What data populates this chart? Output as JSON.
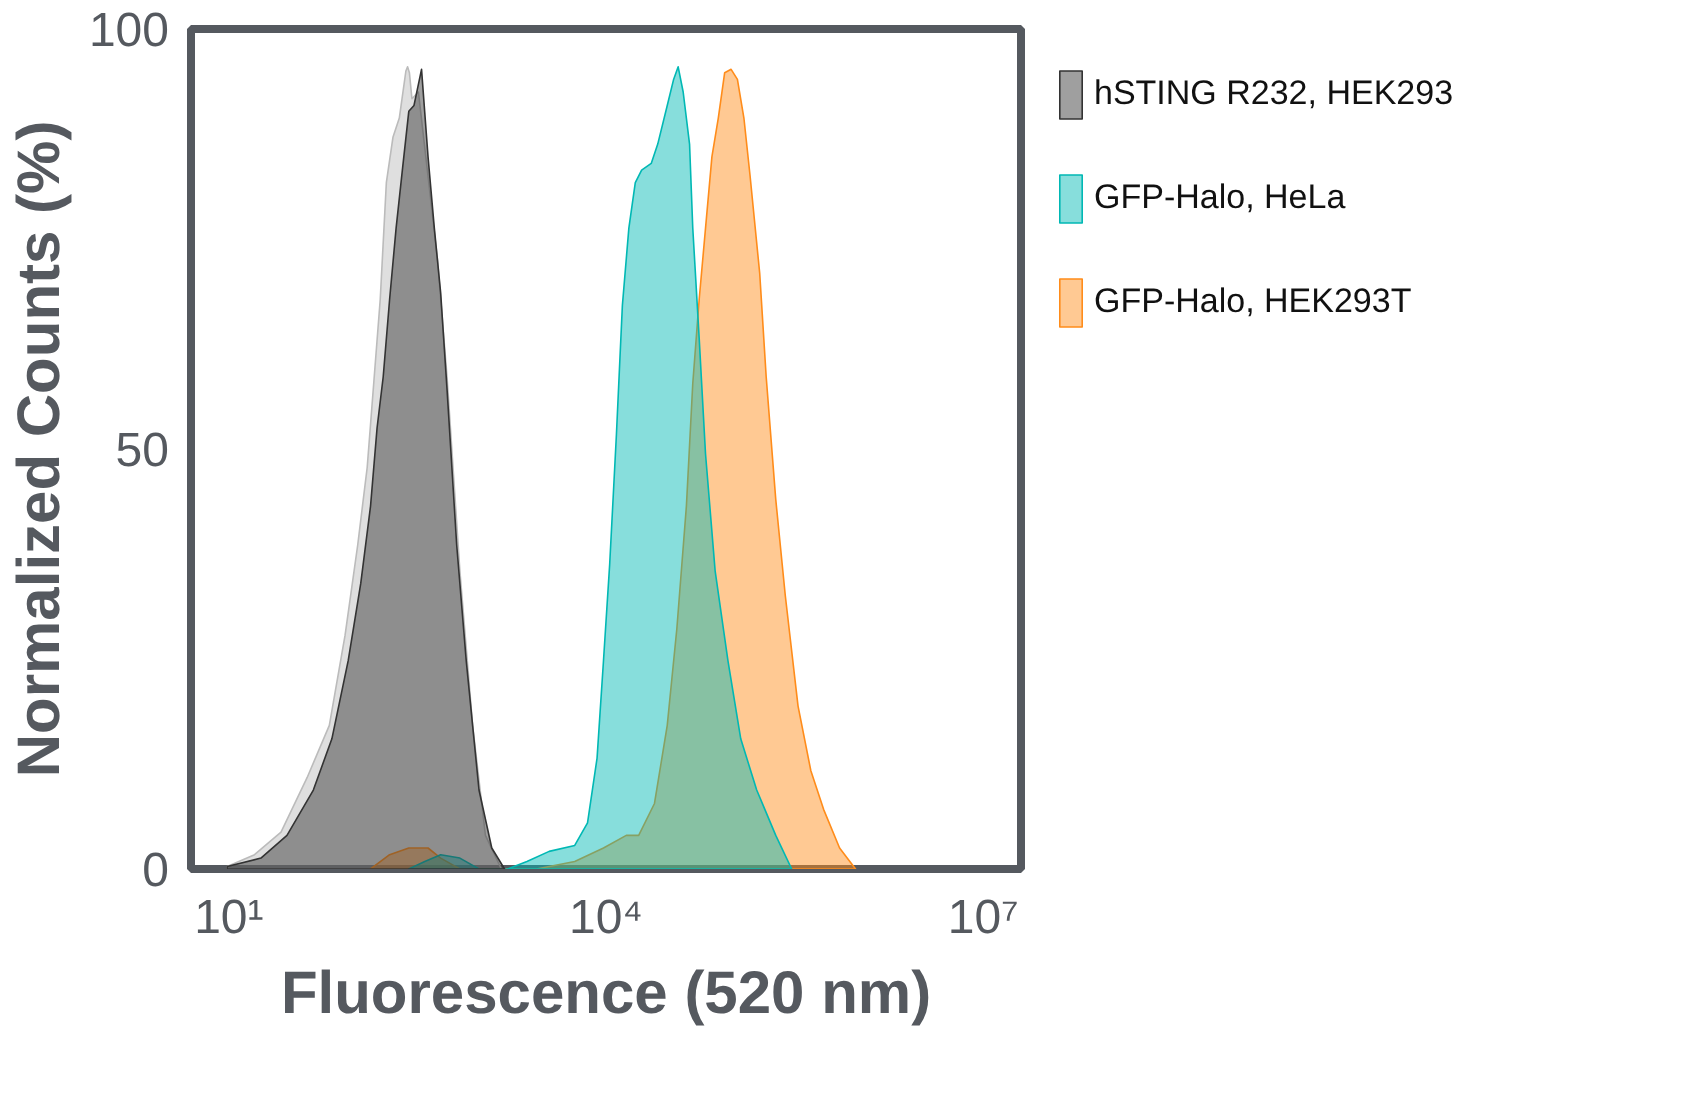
{
  "chart_data": {
    "type": "area",
    "xlabel": "Fluorescence (520 nm)",
    "ylabel": "Normalized Counts (%)",
    "log": "x",
    "xlim": [
      5,
      20000000
    ],
    "xticks": [
      {
        "value": 10,
        "label": "10¹"
      },
      {
        "value": 10000,
        "label": "10⁴"
      },
      {
        "value": 10000000,
        "label": "10⁷"
      }
    ],
    "ylim": [
      0,
      100
    ],
    "yticks": [
      0,
      50,
      100
    ],
    "grid": false,
    "legend": "right",
    "series": [
      {
        "name": "hSTING R232, HEK293",
        "color": "#333333",
        "x": [
          9.7,
          18,
          29,
          47,
          66,
          89,
          112,
          134,
          151,
          169,
          190,
          214,
          240,
          270,
          297,
          341,
          384,
          431,
          484,
          544,
          649,
          773,
          977,
          1234,
          1560
        ],
        "values": [
          0.3,
          1.3,
          4.0,
          9.4,
          15.5,
          24.8,
          34.0,
          43.2,
          52.5,
          58.6,
          67.8,
          76.3,
          83.2,
          90.2,
          90.9,
          95.2,
          84.8,
          76.3,
          68.6,
          57.1,
          38.6,
          24.8,
          9.4,
          2.5,
          0
        ]
      },
      {
        "name": "GFP-Halo, HeLa",
        "color": "#00b8b4",
        "x": [
          270,
          362,
          484,
          688,
          977,
          1652,
          2350,
          3530,
          5640,
          7130,
          8490,
          9550,
          10700,
          12100,
          13500,
          15200,
          17100,
          19200,
          22900,
          25800,
          30700,
          34500,
          37500,
          41100,
          46200,
          49000,
          55100,
          61900,
          73800,
          93300,
          118000,
          158000,
          224000,
          300000
        ],
        "values": [
          0,
          0.9,
          1.7,
          1.3,
          0,
          0,
          0.9,
          2.1,
          2.8,
          5.5,
          13.2,
          24.8,
          36.3,
          51.7,
          67.1,
          76.3,
          81.7,
          83.2,
          84.0,
          86.3,
          90.9,
          94.0,
          95.5,
          92.5,
          86.3,
          76.3,
          63.2,
          49.4,
          35.5,
          24.8,
          15.5,
          9.4,
          4.0,
          0
        ]
      },
      {
        "name": "GFP-Halo, HEK293T",
        "color": "#ff8c1a",
        "x": [
          134,
          190,
          270,
          384,
          484,
          688,
          2800,
          5640,
          9550,
          14500,
          18200,
          24300,
          30700,
          36600,
          43600,
          49000,
          55100,
          61900,
          69600,
          78200,
          87900,
          98900,
          111000,
          125000,
          140000,
          167000,
          188000,
          224000,
          267000,
          337000,
          426000,
          538000,
          721000,
          966000
        ],
        "values": [
          0,
          1.7,
          2.5,
          2.5,
          1.3,
          0,
          0,
          0.9,
          2.5,
          4.0,
          4.0,
          7.8,
          17.1,
          28.6,
          43.2,
          57.8,
          67.8,
          76.3,
          84.8,
          89.4,
          94.8,
          95.2,
          94.0,
          89.4,
          82.5,
          70.9,
          58.6,
          44.0,
          32.5,
          19.4,
          11.7,
          7.1,
          2.5,
          0
        ]
      },
      {
        "color": "#bbbbbb",
        "x": [
          9.7,
          16,
          26,
          42,
          63,
          84,
          106,
          126,
          142,
          160,
          179,
          202,
          227,
          256,
          264,
          273,
          286,
          322,
          384,
          457,
          544,
          688,
          869,
          1099,
          1472
        ],
        "values": [
          0.3,
          1.7,
          4.4,
          10.9,
          17.1,
          27.8,
          38.6,
          47.8,
          57.8,
          67.8,
          81.7,
          87.1,
          89.4,
          95.0,
          95.5,
          94.8,
          91.7,
          92.5,
          82.5,
          72.5,
          58.6,
          35.5,
          17.1,
          4.0,
          0
        ]
      }
    ]
  }
}
